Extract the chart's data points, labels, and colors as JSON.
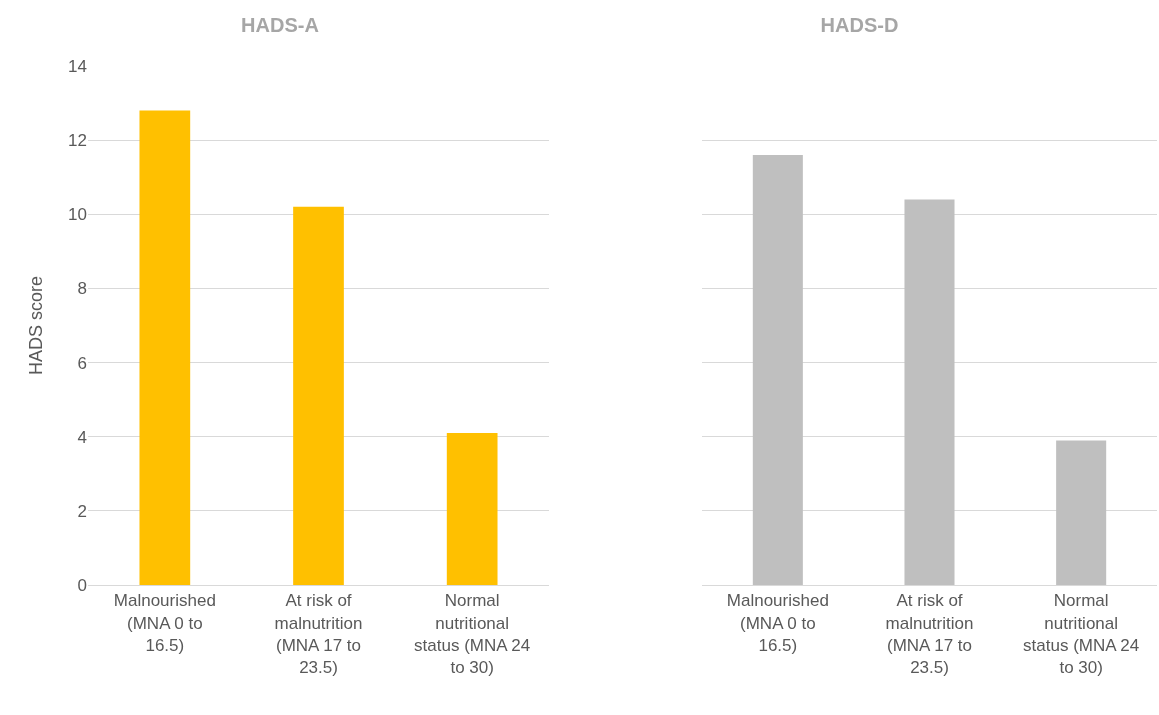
{
  "chart_data": [
    {
      "type": "bar",
      "title": "HADS-A",
      "ylabel": "HADS score",
      "categories": [
        "Malnourished (MNA 0 to 16.5)",
        "At risk of malnutrition (MNA 17 to 23.5)",
        "Normal nutritional status (MNA 24 to 30)"
      ],
      "values": [
        12.8,
        10.2,
        4.1
      ],
      "color": "#ffc000",
      "ylim": [
        0,
        14
      ],
      "yticks": [
        0,
        2,
        4,
        6,
        8,
        10,
        12,
        14
      ],
      "grid": "y"
    },
    {
      "type": "bar",
      "title": "HADS-D",
      "categories": [
        "Malnourished (MNA 0 to 16.5)",
        "At risk of malnutrition (MNA 17 to 23.5)",
        "Normal nutritional status (MNA 24 to 30)"
      ],
      "values": [
        11.6,
        10.4,
        3.9
      ],
      "color": "#bfbfbf",
      "ylim": [
        0,
        14
      ],
      "yticks": [
        0,
        2,
        4,
        6,
        8,
        10,
        12,
        14
      ],
      "grid": "y",
      "tick_labels": "x"
    }
  ]
}
